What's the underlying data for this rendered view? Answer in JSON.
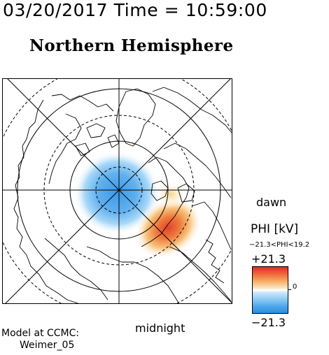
{
  "header": {
    "datetime": "03/20/2017 Time = 10:59:00",
    "hemisphere_title": "Northern Hemisphere"
  },
  "map": {
    "orientation_labels": {
      "dawn": "dawn",
      "midnight": "midnight"
    },
    "projection": "polar stereographic, north pole centered",
    "colors": {
      "positive": "#e02a2a",
      "negative": "#2a8fe2",
      "neutral": "#ffffff",
      "coastline": "#000000"
    }
  },
  "colorbar": {
    "title": "PHI [kV]",
    "range_text": "−21.3<PHI<19.2",
    "max_label": "+21.3",
    "zero_label": "0",
    "min_label": "−21.3"
  },
  "credits": {
    "line1": "Model at CCMC:",
    "line2": "Weimer_05"
  }
}
